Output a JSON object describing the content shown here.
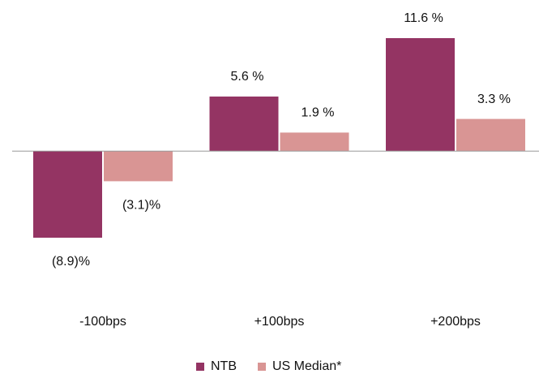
{
  "chart_data": {
    "type": "bar",
    "categories": [
      "-100bps",
      "+100bps",
      "+200bps"
    ],
    "series": [
      {
        "name": "NTB",
        "color": "#943463",
        "values": [
          -8.9,
          5.6,
          11.6
        ],
        "value_labels": [
          "(8.9)%",
          "5.6 %",
          "11.6 %"
        ]
      },
      {
        "name": "US Median*",
        "color": "#d99594",
        "values": [
          -3.1,
          1.9,
          3.3
        ],
        "value_labels": [
          "(3.1)%",
          "1.9 %",
          "3.3 %"
        ]
      }
    ]
  }
}
